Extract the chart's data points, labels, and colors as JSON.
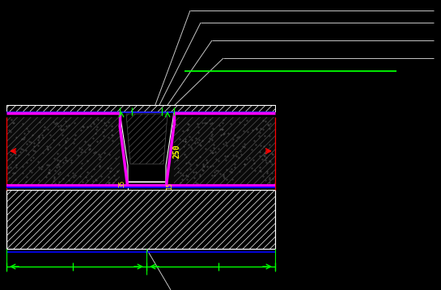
{
  "bg_color": "#000000",
  "white": "#ffffff",
  "green": "#00ff00",
  "cyan": "#00ffff",
  "magenta": "#ff00ff",
  "blue": "#0000ff",
  "red": "#ff0000",
  "yellow": "#ffff00",
  "gray": "#777777",
  "dark_gray": "#444444",
  "annotation_line_color": "#c8c8c8"
}
